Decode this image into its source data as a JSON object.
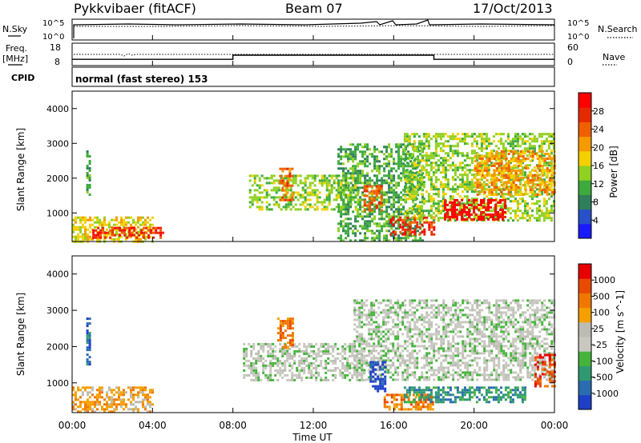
{
  "header": {
    "station": "Pykkvibaer (fitACF)",
    "beam": "Beam 07",
    "date": "17/Oct/2013"
  },
  "noise_panel": {
    "left_label": "N.Sky",
    "right_label": "N.Search",
    "left_ticks": [
      "10^5",
      "10^0"
    ],
    "right_ticks": [
      "10^5",
      "10^0"
    ]
  },
  "freq_panel": {
    "left_label_1": "Freq.",
    "left_label_2": "[MHz]",
    "right_label": "Nave",
    "left_ticks": [
      "18",
      "8"
    ],
    "right_ticks": [
      "60",
      "0"
    ],
    "nave_steps": [
      {
        "from_hour": 0,
        "to_hour": 8.0,
        "level": 0.3
      },
      {
        "from_hour": 8.0,
        "to_hour": 18.0,
        "level": 0.5
      },
      {
        "from_hour": 18.0,
        "to_hour": 24.0,
        "level": 0.3
      }
    ]
  },
  "cpid_panel": {
    "label": "CPID",
    "text": "normal (fast stereo) 153"
  },
  "chart_data": [
    {
      "type": "heatmap",
      "title": "Power",
      "xlabel": "Time UT",
      "ylabel": "Slant Range [km]",
      "x_ticks": [
        "00:00",
        "04:00",
        "08:00",
        "12:00",
        "16:00",
        "20:00",
        "00:00"
      ],
      "y_ticks": [
        "1000",
        "2000",
        "3000",
        "4000"
      ],
      "xlim_hours": [
        0,
        24
      ],
      "ylim_km": [
        180,
        4500
      ],
      "colorbar": {
        "label": "Power [dB]",
        "ticks": [
          "28",
          "24",
          "20",
          "16",
          "12",
          "8",
          "4"
        ],
        "colors": [
          "#1a1aff",
          "#2850c8",
          "#2f7f5a",
          "#3caa3c",
          "#90d020",
          "#f5d000",
          "#f59a00",
          "#f06000",
          "#e62a00",
          "#ff0000"
        ]
      },
      "regions": [
        {
          "hours": [
            0.7,
            0.9
          ],
          "km": [
            1500,
            2800
          ],
          "level": 3
        },
        {
          "hours": [
            0.0,
            4.0
          ],
          "km": [
            180,
            900
          ],
          "level": 5
        },
        {
          "hours": [
            1.0,
            4.5
          ],
          "km": [
            300,
            600
          ],
          "level": 8
        },
        {
          "hours": [
            8.8,
            14.2
          ],
          "km": [
            1100,
            2100
          ],
          "level": 4
        },
        {
          "hours": [
            10.3,
            11.0
          ],
          "km": [
            1400,
            2300
          ],
          "level": 7
        },
        {
          "hours": [
            13.2,
            17.5
          ],
          "km": [
            200,
            3000
          ],
          "level": 3
        },
        {
          "hours": [
            14.5,
            15.4
          ],
          "km": [
            1100,
            1800
          ],
          "level": 7
        },
        {
          "hours": [
            15.8,
            18.0
          ],
          "km": [
            400,
            900
          ],
          "level": 8
        },
        {
          "hours": [
            16.5,
            24.0
          ],
          "km": [
            800,
            3300
          ],
          "level": 4
        },
        {
          "hours": [
            18.5,
            21.5
          ],
          "km": [
            800,
            1400
          ],
          "level": 9
        },
        {
          "hours": [
            20.0,
            24.0
          ],
          "km": [
            1500,
            2800
          ],
          "level": 6
        }
      ]
    },
    {
      "type": "heatmap",
      "title": "Velocity",
      "xlabel": "Time UT",
      "ylabel": "Slant Range [km]",
      "x_ticks": [
        "00:00",
        "04:00",
        "08:00",
        "12:00",
        "16:00",
        "20:00",
        "00:00"
      ],
      "y_ticks": [
        "1000",
        "2000",
        "3000",
        "4000"
      ],
      "xlim_hours": [
        0,
        24
      ],
      "ylim_km": [
        180,
        4500
      ],
      "colorbar": {
        "label": "Velocity [m s^-1]",
        "ticks": [
          "1000",
          "500",
          "100",
          "25",
          "-25",
          "-100",
          "-500",
          "-1000"
        ],
        "colors": [
          "#1e40c8",
          "#2a6cb0",
          "#2f9a72",
          "#46b43c",
          "#c8c8c0",
          "#bcbcb4",
          "#f5a000",
          "#f07800",
          "#e84a00",
          "#e80000"
        ]
      },
      "regions": [
        {
          "hours": [
            0.7,
            0.9
          ],
          "km": [
            1500,
            2800
          ],
          "level": 1
        },
        {
          "hours": [
            0.0,
            4.0
          ],
          "km": [
            180,
            900
          ],
          "level": 6
        },
        {
          "hours": [
            8.5,
            14.5
          ],
          "km": [
            1100,
            2100
          ],
          "level": 4
        },
        {
          "hours": [
            10.2,
            11.0
          ],
          "km": [
            2000,
            2800
          ],
          "level": 7
        },
        {
          "hours": [
            14.0,
            24.0
          ],
          "km": [
            1100,
            3300
          ],
          "level": 4
        },
        {
          "hours": [
            14.8,
            15.6
          ],
          "km": [
            800,
            1600
          ],
          "level": 0
        },
        {
          "hours": [
            15.5,
            18.0
          ],
          "km": [
            300,
            700
          ],
          "level": 7
        },
        {
          "hours": [
            16.5,
            22.5
          ],
          "km": [
            500,
            900
          ],
          "level": 2
        },
        {
          "hours": [
            23.0,
            24.0
          ],
          "km": [
            900,
            1800
          ],
          "level": 8
        }
      ]
    }
  ]
}
